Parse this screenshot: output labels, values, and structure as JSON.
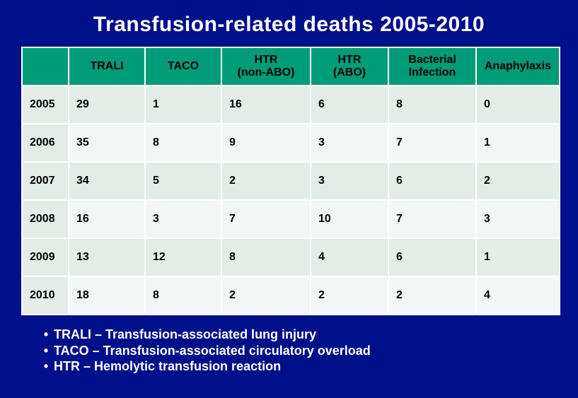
{
  "title": "Transfusion-related deaths 2005-2010",
  "columns": [
    "",
    "TRALI",
    "TACO",
    "HTR\n(non-ABO)",
    "HTR\n(ABO)",
    "Bacterial\nInfection",
    "Anaphylaxis"
  ],
  "rows": [
    {
      "year": "2005",
      "values": [
        "29",
        "1",
        "16",
        "6",
        "8",
        "0"
      ]
    },
    {
      "year": "2006",
      "values": [
        "35",
        "8",
        "9",
        "3",
        "7",
        "1"
      ]
    },
    {
      "year": "2007",
      "values": [
        "34",
        "5",
        "2",
        "3",
        "6",
        "2"
      ]
    },
    {
      "year": "2008",
      "values": [
        "16",
        "3",
        "7",
        "10",
        "7",
        "3"
      ]
    },
    {
      "year": "2009",
      "values": [
        "13",
        "12",
        "8",
        "4",
        "6",
        "1"
      ]
    },
    {
      "year": "2010",
      "values": [
        "18",
        "8",
        "2",
        "2",
        "2",
        "4"
      ]
    }
  ],
  "footnotes": [
    "TRALI – Transfusion-associated lung injury",
    "TACO – Transfusion-associated circulatory overload",
    "HTR – Hemolytic transfusion reaction"
  ],
  "colors": {
    "background": "#000f8a",
    "header_bg": "#009b77",
    "row_odd": "#e2ede8",
    "row_even": "#f2f6f4",
    "text_dark": "#000000",
    "text_light": "#ffffff"
  },
  "col_classes": [
    "col-year",
    "col-d",
    "col-d",
    "col-htr1",
    "col-htr2",
    "col-bact",
    "col-ana"
  ]
}
